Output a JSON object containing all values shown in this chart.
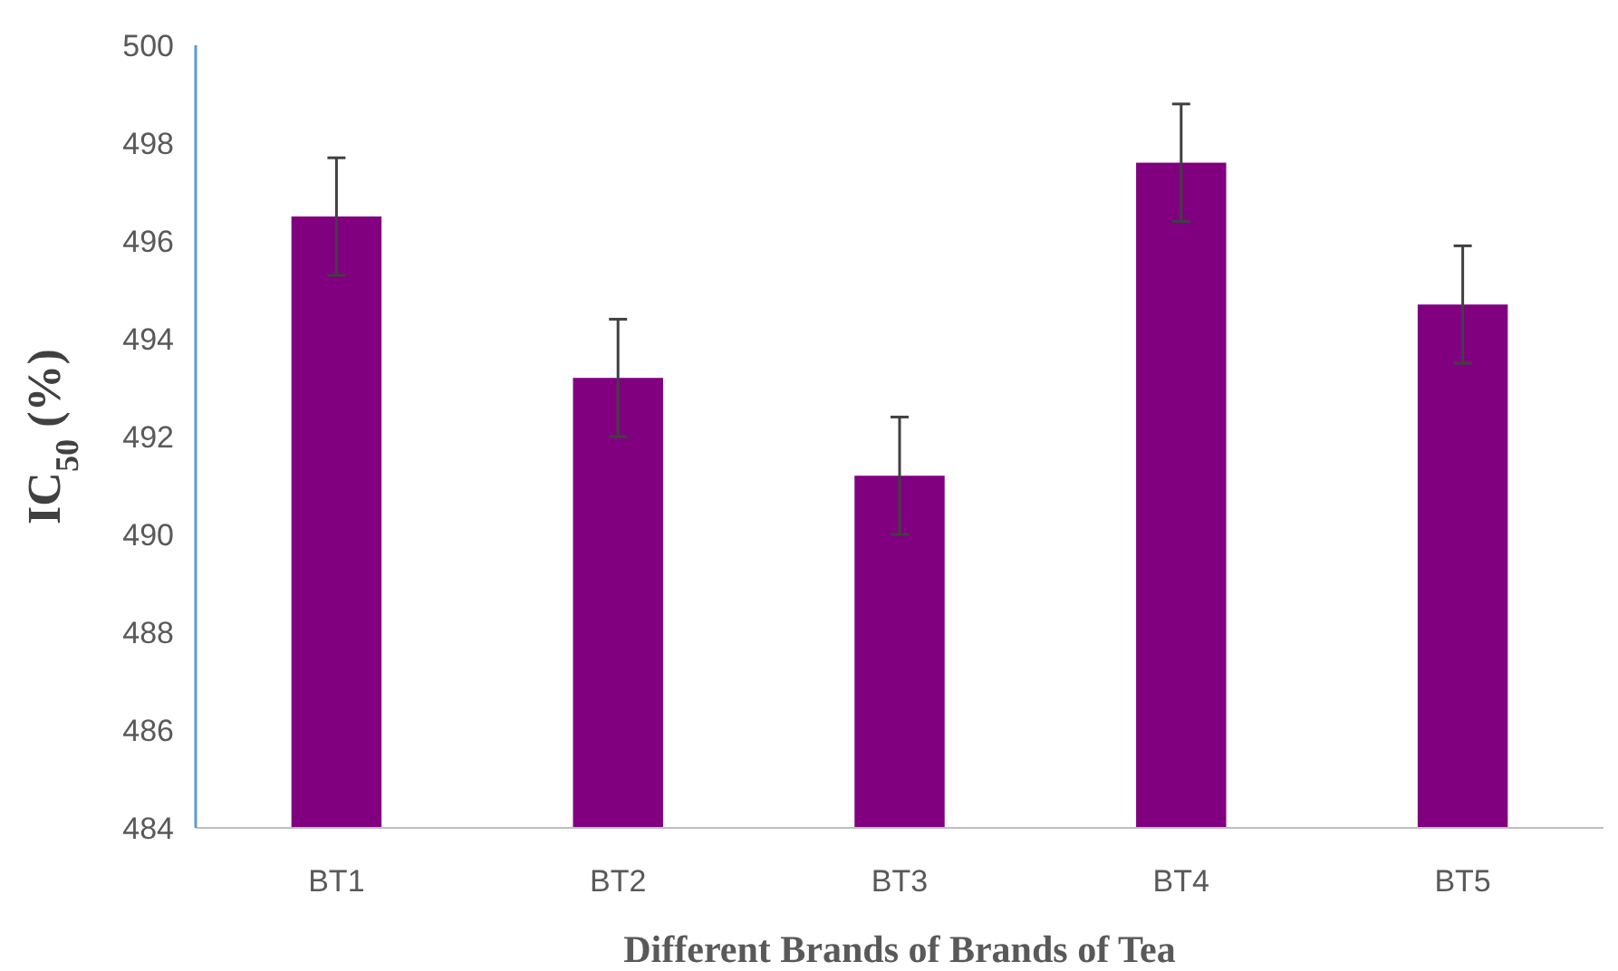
{
  "chart_data": {
    "type": "bar",
    "xlabel": "Different Brands of Brands of Tea",
    "ylabel": "IC$_{50}$ (%)",
    "categories": [
      "BT1",
      "BT2",
      "BT3",
      "BT4",
      "BT5"
    ],
    "values": [
      496.5,
      493.2,
      491.2,
      497.6,
      494.7
    ],
    "errors": [
      1.2,
      1.2,
      1.2,
      1.2,
      1.2
    ],
    "color": "#800080",
    "ylim": [
      484,
      500
    ],
    "yticks": [
      484,
      486,
      488,
      490,
      492,
      494,
      496,
      498,
      500
    ],
    "grid": false
  }
}
